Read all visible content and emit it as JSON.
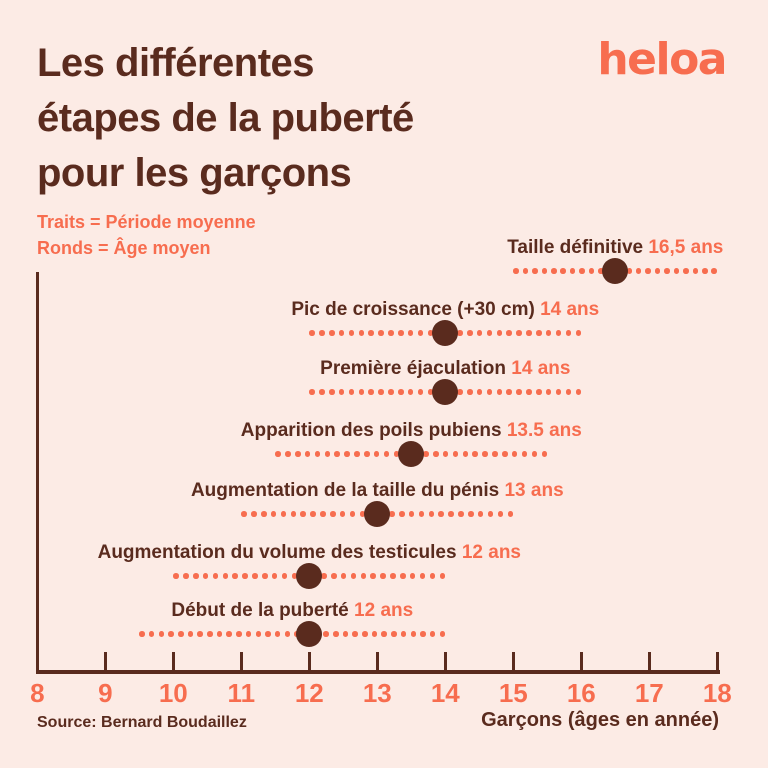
{
  "title": {
    "lines": [
      "Les différentes",
      "étapes de la puberté",
      "pour les garçons"
    ]
  },
  "logo": "heloa",
  "legend": {
    "line1": "Traits = Période moyenne",
    "line2": "Ronds = Âge moyen"
  },
  "source": "Source: Bernard Boudaillez",
  "colors": {
    "background": "#fcebe5",
    "brown": "#5a2b1e",
    "coral": "#f76d4f"
  },
  "chart_data": {
    "type": "scatter",
    "title": "Les différentes étapes de la puberté pour les garçons",
    "xlabel": "Garçons (âges en année)",
    "x_axis": {
      "min": 8,
      "max": 18,
      "ticks": [
        8,
        9,
        10,
        11,
        12,
        13,
        14,
        15,
        16,
        17,
        18
      ],
      "label": "Garçons (âges en année)"
    },
    "legend_note": "Traits = Période moyenne; Ronds = Âge moyen",
    "rows": [
      {
        "label": "Taille définitive",
        "value_label": "16,5 ans",
        "mean_age": 16.5,
        "range": [
          15,
          18
        ]
      },
      {
        "label": "Pic de croissance (+30 cm)",
        "value_label": "14 ans",
        "mean_age": 14,
        "range": [
          12,
          16
        ]
      },
      {
        "label": "Première éjaculation",
        "value_label": "14 ans",
        "mean_age": 14,
        "range": [
          12,
          16
        ]
      },
      {
        "label": "Apparition des poils pubiens",
        "value_label": "13.5 ans",
        "mean_age": 13.5,
        "range": [
          11.5,
          15.5
        ]
      },
      {
        "label": "Augmentation de la taille du pénis",
        "value_label": "13 ans",
        "mean_age": 13,
        "range": [
          11,
          15
        ]
      },
      {
        "label": "Augmentation du volume des testicules",
        "value_label": "12 ans",
        "mean_age": 12,
        "range": [
          10,
          14
        ]
      },
      {
        "label": "Début de la puberté",
        "value_label": "12 ans",
        "mean_age": 12,
        "range": [
          9.5,
          14
        ]
      }
    ]
  }
}
